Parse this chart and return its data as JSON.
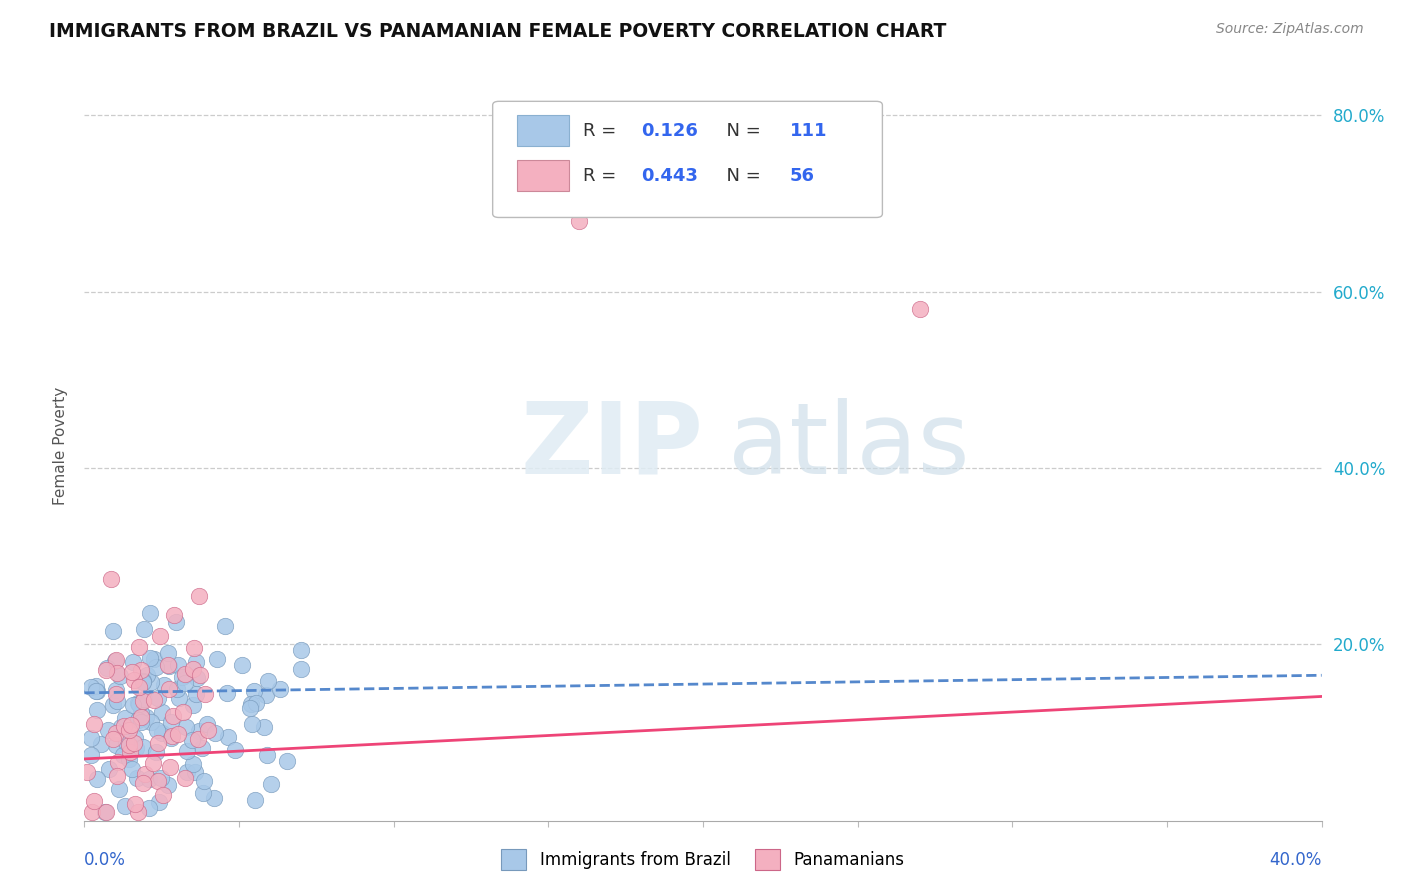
{
  "title": "IMMIGRANTS FROM BRAZIL VS PANAMANIAN FEMALE POVERTY CORRELATION CHART",
  "source": "Source: ZipAtlas.com",
  "ylabel": "Female Poverty",
  "xlim": [
    0.0,
    0.4
  ],
  "ylim": [
    0.0,
    0.85
  ],
  "legend1_r": "0.126",
  "legend1_n": "111",
  "legend2_r": "0.443",
  "legend2_n": "56",
  "color_brazil": "#a8c8e8",
  "color_panama": "#f4b0c0",
  "line_color_brazil": "#5588cc",
  "line_color_panama": "#ee4477",
  "ytick_vals": [
    0.2,
    0.4,
    0.6,
    0.8
  ],
  "ytick_labels": [
    "20.0%",
    "40.0%",
    "60.0%",
    "80.0%"
  ],
  "xtick_left_label": "0.0%",
  "xtick_right_label": "40.0%",
  "bg_color": "#ffffff"
}
